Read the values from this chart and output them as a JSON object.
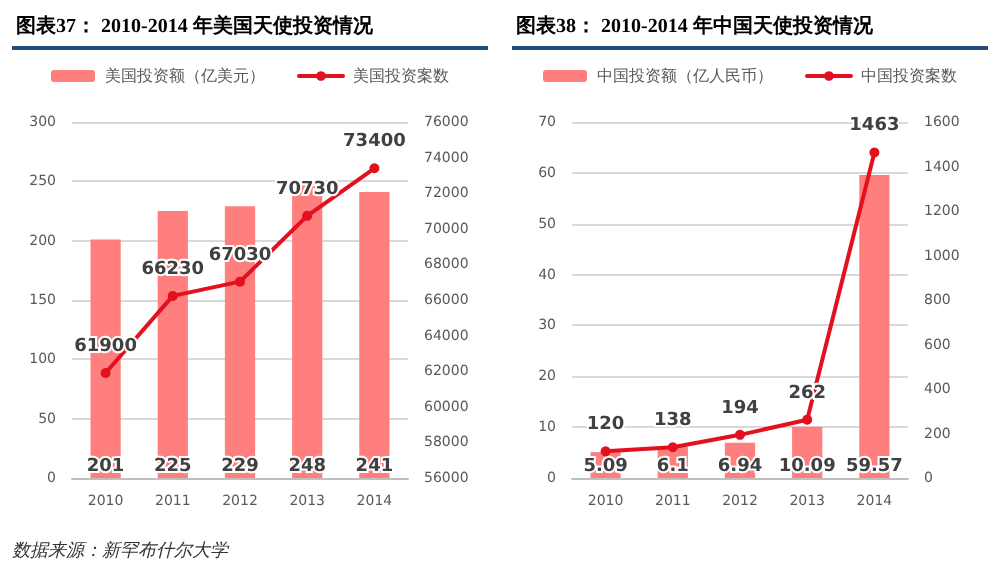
{
  "chart_data": [
    {
      "type": "bar",
      "title": "图表37：  2010-2014 年美国天使投资情况",
      "categories": [
        "2010",
        "2011",
        "2012",
        "2013",
        "2014"
      ],
      "series": [
        {
          "name": "美国投资额（亿美元）",
          "color": "#ff7f7f",
          "values": [
            201,
            225,
            229,
            248,
            241
          ]
        },
        {
          "name": "美国投资案数",
          "type": "line",
          "axis": "y2",
          "color": "#e3101e",
          "values": [
            61900,
            66230,
            67030,
            70730,
            73400
          ]
        }
      ],
      "ylim": [
        0,
        300
      ],
      "yticks": [
        0,
        50,
        100,
        150,
        200,
        250,
        300
      ],
      "y2lim": [
        56000,
        76000
      ],
      "y2ticks": [
        56000,
        58000,
        60000,
        62000,
        64000,
        66000,
        68000,
        70000,
        72000,
        74000,
        76000
      ],
      "data_labels": true,
      "grid": "y",
      "legend": "top",
      "marker": "circle",
      "line_style": "solid",
      "annotations": [
        "数据来源：新罕布什尔大学"
      ]
    },
    {
      "type": "bar",
      "title": "图表38：  2010-2014 年中国天使投资情况",
      "categories": [
        "2010",
        "2011",
        "2012",
        "2013",
        "2014"
      ],
      "series": [
        {
          "name": "中国投资额（亿人民币）",
          "color": "#ff7f7f",
          "values": [
            5.09,
            6.1,
            6.94,
            10.09,
            59.57
          ]
        },
        {
          "name": "中国投资案数",
          "type": "line",
          "axis": "y2",
          "color": "#e3101e",
          "values": [
            120,
            138,
            194,
            262,
            1463
          ]
        }
      ],
      "ylim": [
        0,
        70
      ],
      "yticks": [
        0,
        10,
        20,
        30,
        40,
        50,
        60,
        70
      ],
      "y2lim": [
        0,
        1600
      ],
      "y2ticks": [
        0,
        200,
        400,
        600,
        800,
        1000,
        1200,
        1400,
        1600
      ],
      "data_labels": true,
      "grid": "y",
      "legend": "top",
      "marker": "circle",
      "line_style": "solid"
    }
  ]
}
